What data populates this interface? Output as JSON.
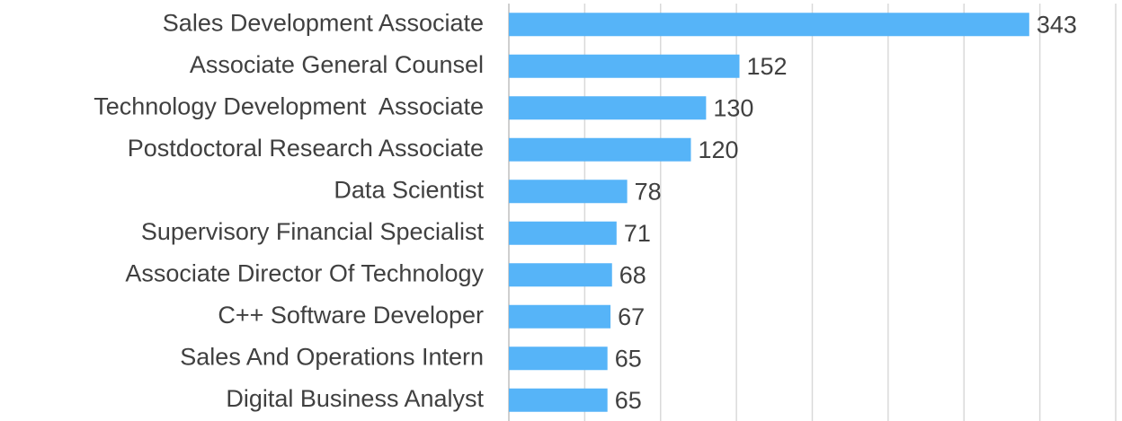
{
  "chart_data": {
    "type": "hbar",
    "categories": [
      "Sales Development Associate",
      "Associate General Counsel",
      "Technology Development  Associate",
      "Postdoctoral Research Associate",
      "Data Scientist",
      "Supervisory Financial Specialist",
      "Associate Director Of Technology",
      "C++ Software Developer",
      "Sales And Operations Intern",
      "Digital Business Analyst"
    ],
    "values": [
      343,
      152,
      130,
      120,
      78,
      71,
      68,
      67,
      65,
      65
    ],
    "color": "#56b4f8",
    "xlim": [
      0,
      400
    ],
    "xticks": [
      0,
      50,
      100,
      150,
      200,
      250,
      300,
      350,
      400
    ],
    "grid": true
  }
}
